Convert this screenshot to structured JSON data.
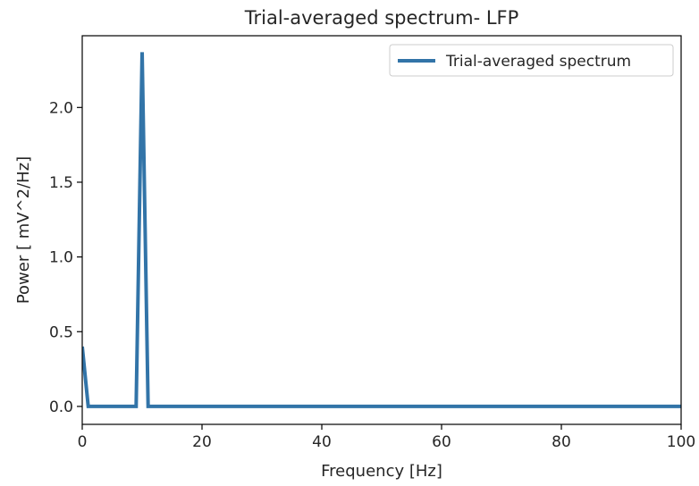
{
  "chart_data": {
    "type": "line",
    "title": "Trial-averaged spectrum- LFP",
    "xlabel": "Frequency [Hz]",
    "ylabel": "Power [ mV^2/Hz]",
    "xlim": [
      0,
      100
    ],
    "ylim": [
      -0.12,
      2.48
    ],
    "xticks": [
      0,
      20,
      40,
      60,
      80,
      100
    ],
    "xtick_labels": [
      "0",
      "20",
      "40",
      "60",
      "80",
      "100"
    ],
    "yticks": [
      0.0,
      0.5,
      1.0,
      1.5,
      2.0
    ],
    "ytick_labels": [
      "0.0",
      "0.5",
      "1.0",
      "1.5",
      "2.0"
    ],
    "grid": false,
    "legend_position": "top-right",
    "series": [
      {
        "name": "Trial-averaged spectrum",
        "color": "#3274a8",
        "x": [
          0,
          1,
          9,
          10,
          11,
          100
        ],
        "y": [
          0.4,
          0.0,
          0.0,
          2.37,
          0.0,
          0.0
        ]
      }
    ]
  }
}
